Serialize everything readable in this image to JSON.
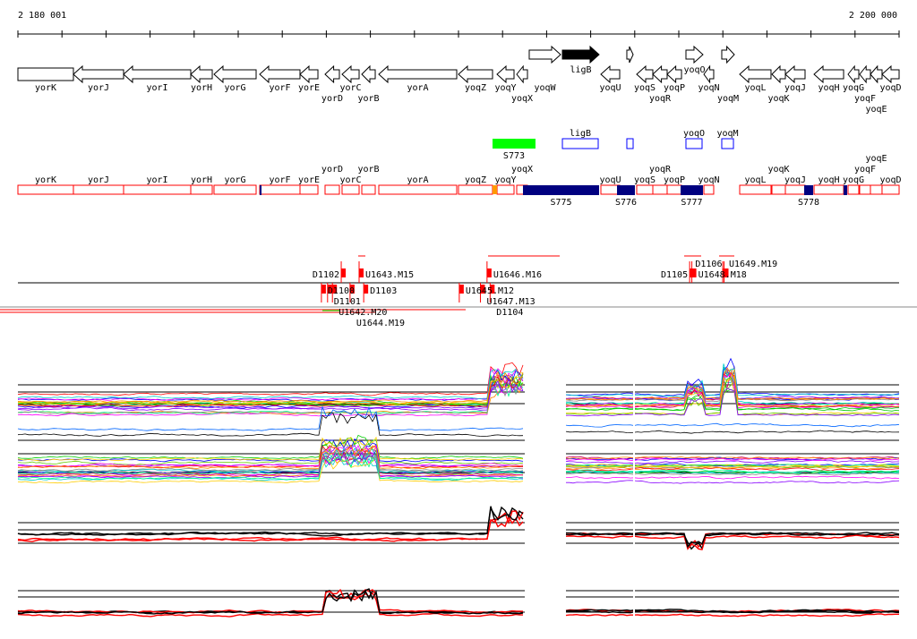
{
  "ruler": {
    "start_label": "2 180 001",
    "end_label": "2 200 000",
    "start": 2180001,
    "end": 2200000
  },
  "genes": [
    {
      "name": "yorK",
      "start": 2180000,
      "end": 2181260,
      "strand": "none"
    },
    {
      "name": "yorJ",
      "start": 2181260,
      "end": 2182399,
      "strand": "-"
    },
    {
      "name": "yorI",
      "start": 2182399,
      "end": 2183924,
      "strand": "-"
    },
    {
      "name": "yorH",
      "start": 2183924,
      "end": 2184412,
      "strand": "-"
    },
    {
      "name": "yorG",
      "start": 2184452,
      "end": 2185408,
      "strand": "-"
    },
    {
      "name": "yorF",
      "start": 2185489,
      "end": 2186404,
      "strand": "-"
    },
    {
      "name": "yorE",
      "start": 2186404,
      "end": 2186811,
      "strand": "-"
    },
    {
      "name": "yorD",
      "start": 2186973,
      "end": 2187298,
      "strand": "-"
    },
    {
      "name": "yorC",
      "start": 2187359,
      "end": 2187746,
      "strand": "-"
    },
    {
      "name": "yorB",
      "start": 2187807,
      "end": 2188112,
      "strand": "-"
    },
    {
      "name": "yorA",
      "start": 2188193,
      "end": 2189962,
      "strand": "-"
    },
    {
      "name": "yoqZ",
      "start": 2190002,
      "end": 2190775,
      "strand": "-"
    },
    {
      "name": "yoqY",
      "start": 2190877,
      "end": 2191263,
      "strand": "-"
    },
    {
      "name": "yoqX",
      "start": 2191324,
      "end": 2191568,
      "strand": "-"
    },
    {
      "name": "yoqW",
      "start": 2191608,
      "end": 2192320,
      "strand": "+"
    },
    {
      "name": "ligB",
      "start": 2192361,
      "end": 2193194,
      "strand": "+",
      "highlight": true
    },
    {
      "name": "yoqU",
      "start": 2193235,
      "end": 2193662,
      "strand": "-"
    },
    {
      "name": "",
      "start": 2193824,
      "end": 2193967,
      "strand": "+"
    },
    {
      "name": "yoqS",
      "start": 2194048,
      "end": 2194414,
      "strand": "-"
    },
    {
      "name": "yoqR",
      "start": 2194414,
      "end": 2194739,
      "strand": "-"
    },
    {
      "name": "yoqP",
      "start": 2194739,
      "end": 2195065,
      "strand": "-"
    },
    {
      "name": "yoqO",
      "start": 2195166,
      "end": 2195552,
      "strand": "+"
    },
    {
      "name": "yoqN",
      "start": 2195573,
      "end": 2195796,
      "strand": "-"
    },
    {
      "name": "yoqM",
      "start": 2195979,
      "end": 2196264,
      "strand": "+"
    },
    {
      "name": "yoqL",
      "start": 2196386,
      "end": 2197097,
      "strand": "-"
    },
    {
      "name": "yoqK",
      "start": 2197118,
      "end": 2197423,
      "strand": "-"
    },
    {
      "name": "yoqJ",
      "start": 2197423,
      "end": 2197870,
      "strand": "-"
    },
    {
      "name": "yoqH",
      "start": 2198074,
      "end": 2198745,
      "strand": "-"
    },
    {
      "name": "yoqG",
      "start": 2198846,
      "end": 2199090,
      "strand": "-"
    },
    {
      "name": "yoqF",
      "start": 2199110,
      "end": 2199354,
      "strand": "-"
    },
    {
      "name": "yoqE",
      "start": 2199354,
      "end": 2199618,
      "strand": "-"
    },
    {
      "name": "yoqD",
      "start": 2199618,
      "end": 2200005,
      "strand": "-"
    }
  ],
  "features": [
    {
      "name": "S773",
      "start": 2190775,
      "end": 2191750,
      "type": "green"
    },
    {
      "name": "ligB",
      "start": 2192361,
      "end": 2193174,
      "type": "blue"
    },
    {
      "name": "",
      "start": 2193824,
      "end": 2193967,
      "type": "blue"
    },
    {
      "name": "yoqO",
      "start": 2195166,
      "end": 2195532,
      "type": "blue"
    },
    {
      "name": "yoqM",
      "start": 2195979,
      "end": 2196244,
      "type": "blue"
    }
  ],
  "segments": [
    {
      "name": "S775",
      "start": 2191466,
      "end": 2193194
    },
    {
      "name": "S776",
      "start": 2193601,
      "end": 2194007
    },
    {
      "name": "S777",
      "start": 2195044,
      "end": 2195552
    },
    {
      "name": "S778",
      "start": 2197850,
      "end": 2198054
    },
    {
      "name": "",
      "start": 2185489,
      "end": 2185530
    },
    {
      "name": "",
      "start": 2198745,
      "end": 2198826
    }
  ],
  "terminators": [
    {
      "name": "D1102",
      "pos": 2187340,
      "side": "up"
    },
    {
      "name": "U1643.M15",
      "pos": 2187746,
      "side": "up"
    },
    {
      "name": "U1646.M16",
      "pos": 2190650,
      "side": "up"
    },
    {
      "name": "D1105",
      "pos": 2195250,
      "side": "up"
    },
    {
      "name": "U1648.M18",
      "pos": 2195300,
      "side": "up"
    },
    {
      "name": "D1106",
      "pos": 2196030,
      "side": "up"
    },
    {
      "name": "U1649.M19",
      "pos": 2196000,
      "side": "up"
    },
    {
      "name": "D1100",
      "pos": 2186890,
      "side": "down"
    },
    {
      "name": "D1101",
      "pos": 2187030,
      "side": "down"
    },
    {
      "name": "D1103",
      "pos": 2187850,
      "side": "down"
    },
    {
      "name": "U1642.M20",
      "pos": 2187140,
      "side": "down"
    },
    {
      "name": "U1644.M19",
      "pos": 2187540,
      "side": "down"
    },
    {
      "name": "U1645.M12",
      "pos": 2190020,
      "side": "down"
    },
    {
      "name": "U1647.M13",
      "pos": 2190500,
      "side": "down"
    },
    {
      "name": "D1104",
      "pos": 2190720,
      "side": "down"
    }
  ],
  "colors": {
    "gene_outline": "#ff0000",
    "segment": "#000080",
    "feature_green": "#00ff00",
    "feature_blue": "#0000ff",
    "marker": "#ff0000",
    "orange": "#ff9900"
  }
}
